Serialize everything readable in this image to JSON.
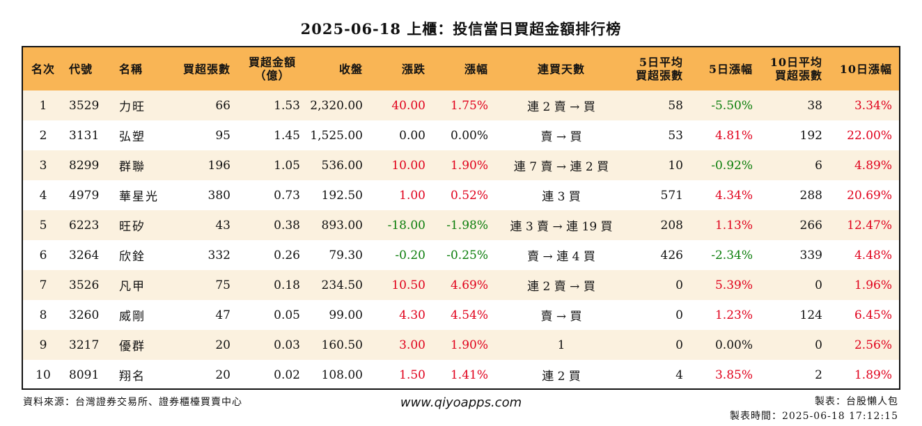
{
  "title": "2025-06-18 上櫃：投信當日買超金額排行榜",
  "headers": {
    "rank": "名次",
    "code": "代號",
    "name": "名稱",
    "buy_lots": "買超張數",
    "buy_amount_l1": "買超金額",
    "buy_amount_l2": "（億）",
    "close": "收盤",
    "change": "漲跌",
    "pct": "漲幅",
    "streak": "連買天數",
    "avg5_l1": "5日平均",
    "avg5_l2": "買超張數",
    "pct5": "5日漲幅",
    "avg10_l1": "10日平均",
    "avg10_l2": "買超張數",
    "pct10": "10日漲幅"
  },
  "rows": [
    {
      "rank": "1",
      "code": "3529",
      "name": "力旺",
      "lots": "66",
      "amount": "1.53",
      "close": "2,320.00",
      "change": "40.00",
      "pct": "1.75%",
      "streak": "連 2 賣 → 買",
      "avg5": "58",
      "pct5": "-5.50%",
      "avg10": "38",
      "pct10": "3.34%",
      "change_dir": "up",
      "pct_dir": "up",
      "pct5_dir": "down",
      "pct10_dir": "up"
    },
    {
      "rank": "2",
      "code": "3131",
      "name": "弘塑",
      "lots": "95",
      "amount": "1.45",
      "close": "1,525.00",
      "change": "0.00",
      "pct": "0.00%",
      "streak": "賣 → 買",
      "avg5": "53",
      "pct5": "4.81%",
      "avg10": "192",
      "pct10": "22.00%",
      "change_dir": "flat",
      "pct_dir": "flat",
      "pct5_dir": "up",
      "pct10_dir": "up"
    },
    {
      "rank": "3",
      "code": "8299",
      "name": "群聯",
      "lots": "196",
      "amount": "1.05",
      "close": "536.00",
      "change": "10.00",
      "pct": "1.90%",
      "streak": "連 7 賣 → 連 2 買",
      "avg5": "10",
      "pct5": "-0.92%",
      "avg10": "6",
      "pct10": "4.89%",
      "change_dir": "up",
      "pct_dir": "up",
      "pct5_dir": "down",
      "pct10_dir": "up"
    },
    {
      "rank": "4",
      "code": "4979",
      "name": "華星光",
      "lots": "380",
      "amount": "0.73",
      "close": "192.50",
      "change": "1.00",
      "pct": "0.52%",
      "streak": "連 3 買",
      "avg5": "571",
      "pct5": "4.34%",
      "avg10": "288",
      "pct10": "20.69%",
      "change_dir": "up",
      "pct_dir": "up",
      "pct5_dir": "up",
      "pct10_dir": "up"
    },
    {
      "rank": "5",
      "code": "6223",
      "name": "旺矽",
      "lots": "43",
      "amount": "0.38",
      "close": "893.00",
      "change": "-18.00",
      "pct": "-1.98%",
      "streak": "連 3 賣 → 連 19 買",
      "avg5": "208",
      "pct5": "1.13%",
      "avg10": "266",
      "pct10": "12.47%",
      "change_dir": "down",
      "pct_dir": "down",
      "pct5_dir": "up",
      "pct10_dir": "up"
    },
    {
      "rank": "6",
      "code": "3264",
      "name": "欣銓",
      "lots": "332",
      "amount": "0.26",
      "close": "79.30",
      "change": "-0.20",
      "pct": "-0.25%",
      "streak": "賣 → 連 4 買",
      "avg5": "426",
      "pct5": "-2.34%",
      "avg10": "339",
      "pct10": "4.48%",
      "change_dir": "down",
      "pct_dir": "down",
      "pct5_dir": "down",
      "pct10_dir": "up"
    },
    {
      "rank": "7",
      "code": "3526",
      "name": "凡甲",
      "lots": "75",
      "amount": "0.18",
      "close": "234.50",
      "change": "10.50",
      "pct": "4.69%",
      "streak": "連 2 賣 → 買",
      "avg5": "0",
      "pct5": "5.39%",
      "avg10": "0",
      "pct10": "1.96%",
      "change_dir": "up",
      "pct_dir": "up",
      "pct5_dir": "up",
      "pct10_dir": "up"
    },
    {
      "rank": "8",
      "code": "3260",
      "name": "威剛",
      "lots": "47",
      "amount": "0.05",
      "close": "99.00",
      "change": "4.30",
      "pct": "4.54%",
      "streak": "賣 → 買",
      "avg5": "0",
      "pct5": "1.23%",
      "avg10": "124",
      "pct10": "6.45%",
      "change_dir": "up",
      "pct_dir": "up",
      "pct5_dir": "up",
      "pct10_dir": "up"
    },
    {
      "rank": "9",
      "code": "3217",
      "name": "優群",
      "lots": "20",
      "amount": "0.03",
      "close": "160.50",
      "change": "3.00",
      "pct": "1.90%",
      "streak": "1",
      "avg5": "0",
      "pct5": "0.00%",
      "avg10": "0",
      "pct10": "2.56%",
      "change_dir": "up",
      "pct_dir": "up",
      "pct5_dir": "flat",
      "pct10_dir": "up"
    },
    {
      "rank": "10",
      "code": "8091",
      "name": "翔名",
      "lots": "20",
      "amount": "0.02",
      "close": "108.00",
      "change": "1.50",
      "pct": "1.41%",
      "streak": "連 2 買",
      "avg5": "4",
      "pct5": "3.85%",
      "avg10": "2",
      "pct10": "1.89%",
      "change_dir": "up",
      "pct_dir": "up",
      "pct5_dir": "up",
      "pct10_dir": "up"
    }
  ],
  "footer": {
    "source": "資料來源：台灣證券交易所、證券櫃檯買賣中心",
    "website": "www.qiyoapps.com",
    "maker": "製表：台股懶人包",
    "made_time": "製表時間：2025-06-18 17:12:15"
  },
  "colors": {
    "header_bg": "#f9b555",
    "stripe_bg": "#fbf1df",
    "up": "#e0001b",
    "down": "#0a7d0a"
  }
}
